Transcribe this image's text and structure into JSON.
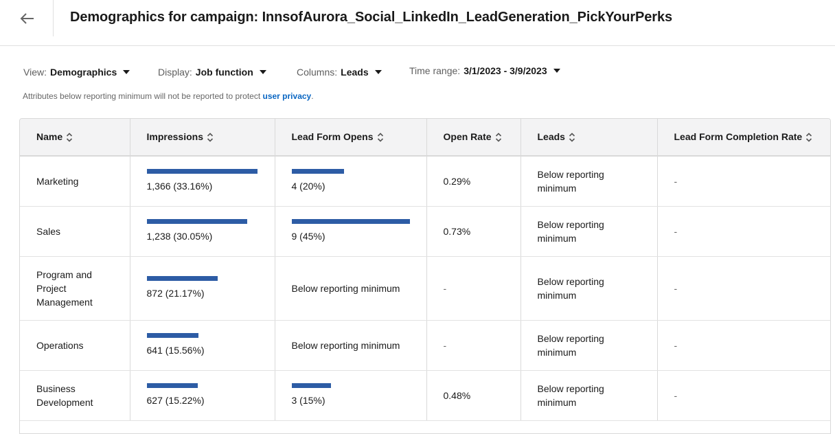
{
  "header": {
    "title": "Demographics for campaign: InnsofAurora_Social_LinkedIn_LeadGeneration_PickYourPerks",
    "back_icon": "arrow-left-icon"
  },
  "filters": {
    "view": {
      "label": "View:",
      "value": "Demographics"
    },
    "display": {
      "label": "Display:",
      "value": "Job function"
    },
    "columns": {
      "label": "Columns:",
      "value": "Leads"
    },
    "time_range": {
      "label": "Time range:",
      "value": "3/1/2023 - 3/9/2023"
    }
  },
  "notice": {
    "text": "Attributes below reporting minimum will not be reported to protect ",
    "link": "user privacy",
    "suffix": "."
  },
  "table": {
    "columns": [
      "Name",
      "Impressions",
      "Lead Form Opens",
      "Open Rate",
      "Leads",
      "Lead Form Completion Rate"
    ],
    "rows": [
      {
        "name": "Marketing",
        "impressions": "1,366 (33.16%)",
        "impressions_pct": 33.16,
        "lead_form_opens": "4 (20%)",
        "lead_form_opens_pct": 20,
        "open_rate": "0.29%",
        "leads": "Below reporting minimum",
        "completion_rate": "-"
      },
      {
        "name": "Sales",
        "impressions": "1,238 (30.05%)",
        "impressions_pct": 30.05,
        "lead_form_opens": "9 (45%)",
        "lead_form_opens_pct": 45,
        "open_rate": "0.73%",
        "leads": "Below reporting minimum",
        "completion_rate": "-"
      },
      {
        "name": "Program and Project Management",
        "impressions": "872 (21.17%)",
        "impressions_pct": 21.17,
        "lead_form_opens": "Below reporting minimum",
        "lead_form_opens_pct": null,
        "open_rate": "-",
        "leads": "Below reporting minimum",
        "completion_rate": "-"
      },
      {
        "name": "Operations",
        "impressions": "641 (15.56%)",
        "impressions_pct": 15.56,
        "lead_form_opens": "Below reporting minimum",
        "lead_form_opens_pct": null,
        "open_rate": "-",
        "leads": "Below reporting minimum",
        "completion_rate": "-"
      },
      {
        "name": "Business Development",
        "impressions": "627 (15.22%)",
        "impressions_pct": 15.22,
        "lead_form_opens": "3 (15%)",
        "lead_form_opens_pct": 15,
        "open_rate": "0.48%",
        "leads": "Below reporting minimum",
        "completion_rate": "-"
      }
    ]
  },
  "colors": {
    "bar": "#2d5ca5",
    "link": "#0a66c2"
  }
}
